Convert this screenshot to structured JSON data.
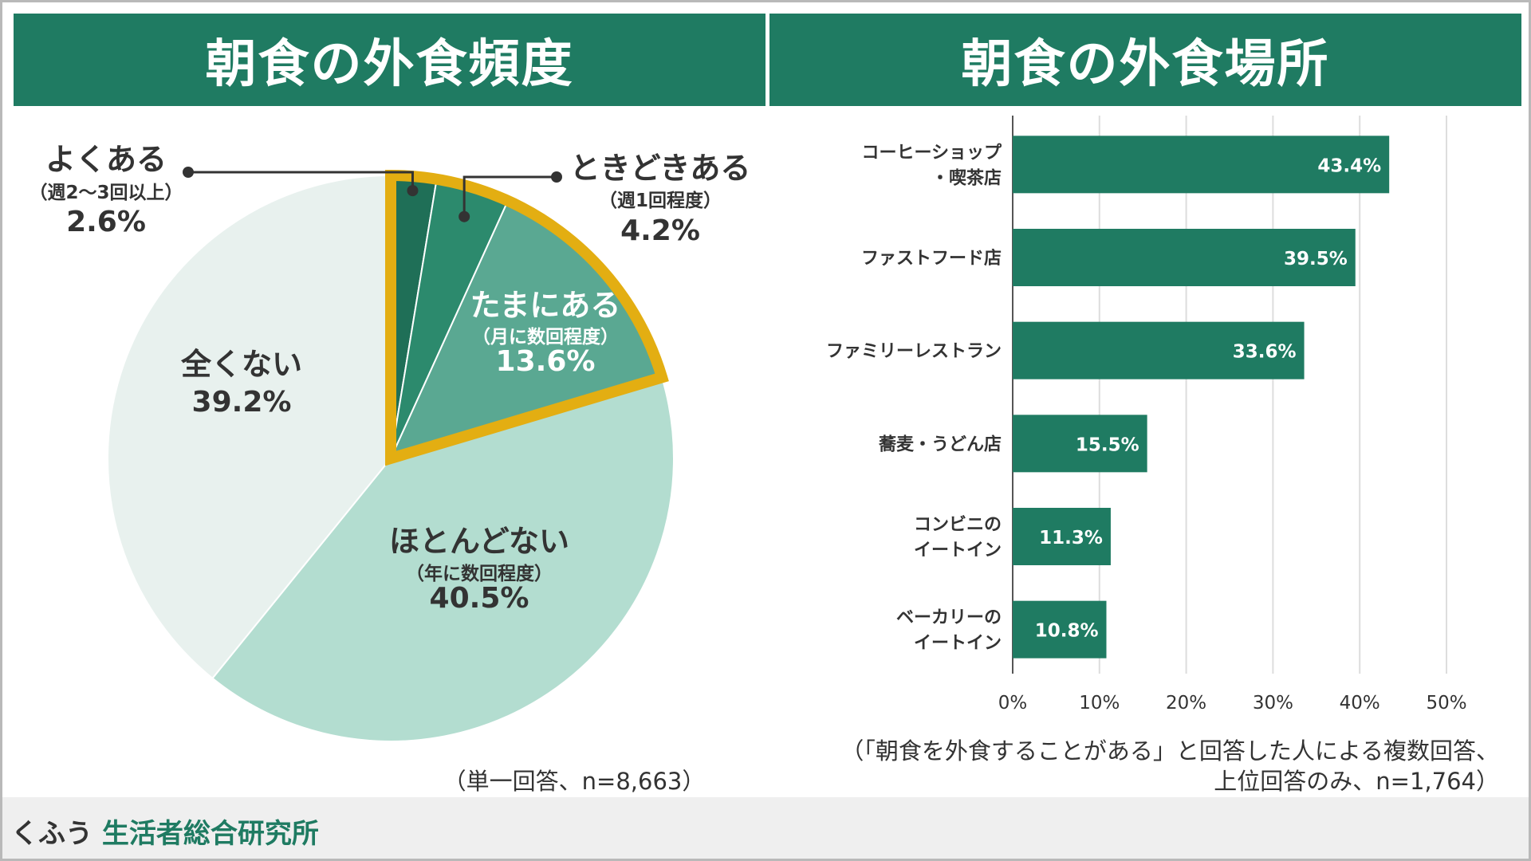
{
  "left_panel": {
    "title": "朝食の外食頻度",
    "note": "（単一回答、n=8,663）"
  },
  "right_panel": {
    "title": "朝食の外食場所",
    "note_line1": "（「朝食を外食することがある」と回答した人による複数回答、",
    "note_line2": "上位回答のみ、n=1,764）"
  },
  "footer": {
    "brand_prefix": "くふう",
    "brand_suffix": "生活者総合研究所"
  },
  "colors": {
    "header": "#1f7b62",
    "dark_green": "#1f6f57",
    "mid_green": "#2c8a6d",
    "light_green": "#5aa892",
    "pale_green": "#b3ddd0",
    "palest_green": "#e8f1ee",
    "highlight": "#e3ae12",
    "bar": "#1f7b62"
  },
  "chart_data": [
    {
      "type": "pie",
      "title": "朝食の外食頻度",
      "slices": [
        {
          "label": "よくある",
          "sub": "（週2〜3回以上）",
          "value": 2.6,
          "value_label": "2.6%",
          "color": "#1f6f57"
        },
        {
          "label": "ときどきある",
          "sub": "（週1回程度）",
          "value": 4.2,
          "value_label": "4.2%",
          "color": "#2c8a6d"
        },
        {
          "label": "たまにある",
          "sub": "（月に数回程度）",
          "value": 13.6,
          "value_label": "13.6%",
          "color": "#5aa892"
        },
        {
          "label": "ほとんどない",
          "sub": "（年に数回程度）",
          "value": 40.5,
          "value_label": "40.5%",
          "color": "#b3ddd0"
        },
        {
          "label": "全くない",
          "sub": "",
          "value": 39.2,
          "value_label": "39.2%",
          "color": "#e8f1ee"
        }
      ],
      "highlighted_slices": [
        "よくある",
        "ときどきある",
        "たまにある"
      ]
    },
    {
      "type": "bar",
      "orientation": "horizontal",
      "title": "朝食の外食場所",
      "categories": [
        [
          "コーヒーショップ",
          "・喫茶店"
        ],
        [
          "ファストフード店"
        ],
        [
          "ファミリーレストラン"
        ],
        [
          "蕎麦・うどん店"
        ],
        [
          "コンビニの",
          "イートイン"
        ],
        [
          "ベーカリーの",
          "イートイン"
        ]
      ],
      "values": [
        43.4,
        39.5,
        33.6,
        15.5,
        11.3,
        10.8
      ],
      "value_labels": [
        "43.4%",
        "39.5%",
        "33.6%",
        "15.5%",
        "11.3%",
        "10.8%"
      ],
      "xlim": [
        0,
        50
      ],
      "xticks": [
        "0%",
        "10%",
        "20%",
        "30%",
        "40%",
        "50%"
      ],
      "grid": true
    }
  ]
}
